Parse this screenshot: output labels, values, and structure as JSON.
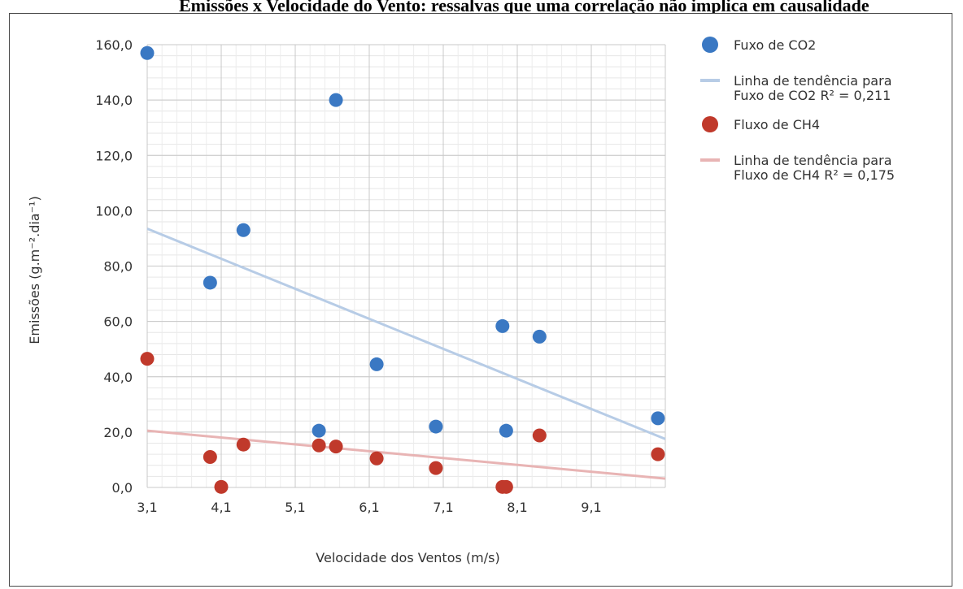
{
  "page": {
    "top_title": "Emissões x Velocidade do Vento: ressalvas que uma correlação não implica em causalidade"
  },
  "chart_data": {
    "type": "scatter",
    "xlabel": "Velocidade dos Ventos (m/s)",
    "ylabel": "Emissões (g.m⁻².dia⁻¹)",
    "xlim": [
      3.1,
      10.1
    ],
    "ylim": [
      0,
      160
    ],
    "x_ticks": [
      "3,1",
      "4,1",
      "5,1",
      "6,1",
      "7,1",
      "8,1",
      "9,1"
    ],
    "x_tick_values": [
      3.1,
      4.1,
      5.1,
      6.1,
      7.1,
      8.1,
      9.1
    ],
    "y_ticks": [
      "0,0",
      "20,0",
      "40,0",
      "60,0",
      "80,0",
      "100,0",
      "120,0",
      "140,0",
      "160,0"
    ],
    "y_tick_values": [
      0,
      20,
      40,
      60,
      80,
      100,
      120,
      140,
      160
    ],
    "grid": true,
    "legend_position": "right",
    "series": [
      {
        "name": "Fuxo de CO2",
        "kind": "scatter",
        "color": "#3a78c3",
        "points": [
          [
            3.1,
            157.0
          ],
          [
            3.95,
            74.0
          ],
          [
            4.4,
            93.0
          ],
          [
            5.42,
            20.5
          ],
          [
            5.65,
            140.0
          ],
          [
            6.2,
            44.5
          ],
          [
            7.0,
            22.0
          ],
          [
            7.9,
            58.3
          ],
          [
            7.95,
            20.5
          ],
          [
            8.4,
            54.5
          ],
          [
            10.0,
            25.0
          ]
        ]
      },
      {
        "name": "Linha de tendência para Fuxo de CO2 R² = 0,211",
        "name_lines": [
          "Linha de tendência para",
          "Fuxo de CO2 R² = 0,211"
        ],
        "kind": "trendline",
        "color": "#b7cce6",
        "points": [
          [
            3.1,
            93.5
          ],
          [
            10.1,
            17.5
          ]
        ]
      },
      {
        "name": "Fluxo de CH4",
        "kind": "scatter",
        "color": "#c0392b",
        "points": [
          [
            3.1,
            46.5
          ],
          [
            3.95,
            11.0
          ],
          [
            4.1,
            0.2
          ],
          [
            4.4,
            15.5
          ],
          [
            5.42,
            15.2
          ],
          [
            5.65,
            14.8
          ],
          [
            6.2,
            10.5
          ],
          [
            7.0,
            7.0
          ],
          [
            7.9,
            0.2
          ],
          [
            7.95,
            0.2
          ],
          [
            8.4,
            18.8
          ],
          [
            10.0,
            12.0
          ]
        ]
      },
      {
        "name": "Linha de tendência para Fluxo de CH4 R² = 0,175",
        "name_lines": [
          "Linha de tendência para",
          "Fluxo de CH4 R² = 0,175"
        ],
        "kind": "trendline",
        "color": "#e8b4b4",
        "points": [
          [
            3.1,
            20.5
          ],
          [
            10.1,
            3.2
          ]
        ]
      }
    ]
  }
}
